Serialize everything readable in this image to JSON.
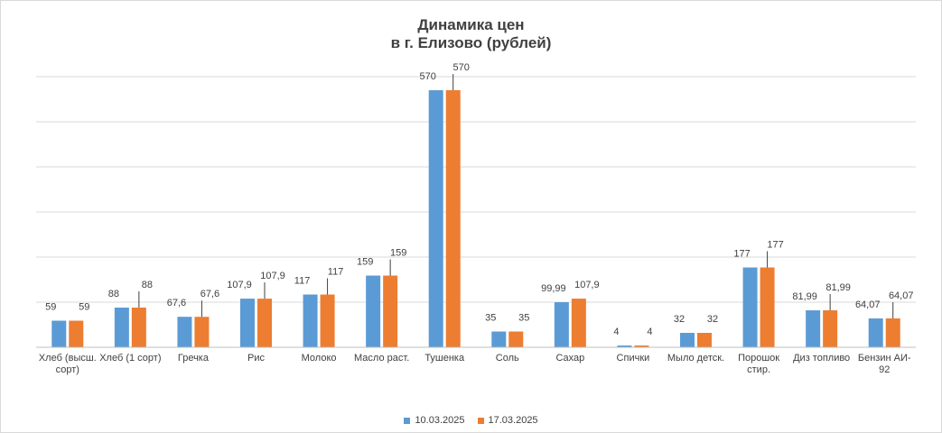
{
  "chart_data": {
    "type": "bar",
    "title": "Динамика цен",
    "subtitle": "в г. Елизово (рублей)",
    "xlabel": "",
    "ylabel": "",
    "ylim": [
      0,
      600
    ],
    "grid": true,
    "legend_position": "bottom",
    "categories": [
      [
        "Хлеб (высш.",
        "сорт)"
      ],
      [
        "Хлеб (1 сорт)"
      ],
      [
        "Гречка"
      ],
      [
        "Рис"
      ],
      [
        "Молоко"
      ],
      [
        "Масло раст."
      ],
      [
        "Тушенка"
      ],
      [
        "Соль"
      ],
      [
        "Сахар"
      ],
      [
        "Спички"
      ],
      [
        "Мыло детск."
      ],
      [
        "Порошок",
        "стир."
      ],
      [
        "Диз топливо"
      ],
      [
        "Бензин АИ-",
        "92"
      ]
    ],
    "series": [
      {
        "name": "10.03.2025",
        "color": "#5b9bd5",
        "values": [
          59,
          88,
          67.6,
          107.9,
          117,
          159,
          570,
          35,
          99.99,
          4,
          32,
          177,
          81.99,
          64.07
        ],
        "labels": [
          "59",
          "88",
          "67,6",
          "107,9",
          "117",
          "159",
          "570",
          "35",
          "99,99",
          "4",
          "32",
          "177",
          "81,99",
          "64,07"
        ]
      },
      {
        "name": "17.03.2025",
        "color": "#ed7d31",
        "values": [
          59,
          88,
          67.6,
          107.9,
          117,
          159,
          570,
          35,
          107.9,
          4,
          32,
          177,
          81.99,
          64.07
        ],
        "labels": [
          "59",
          "88",
          "67,6",
          "107,9",
          "117",
          "159",
          "570",
          "35",
          "107,9",
          "4",
          "32",
          "177",
          "81,99",
          "64,07"
        ]
      }
    ]
  }
}
